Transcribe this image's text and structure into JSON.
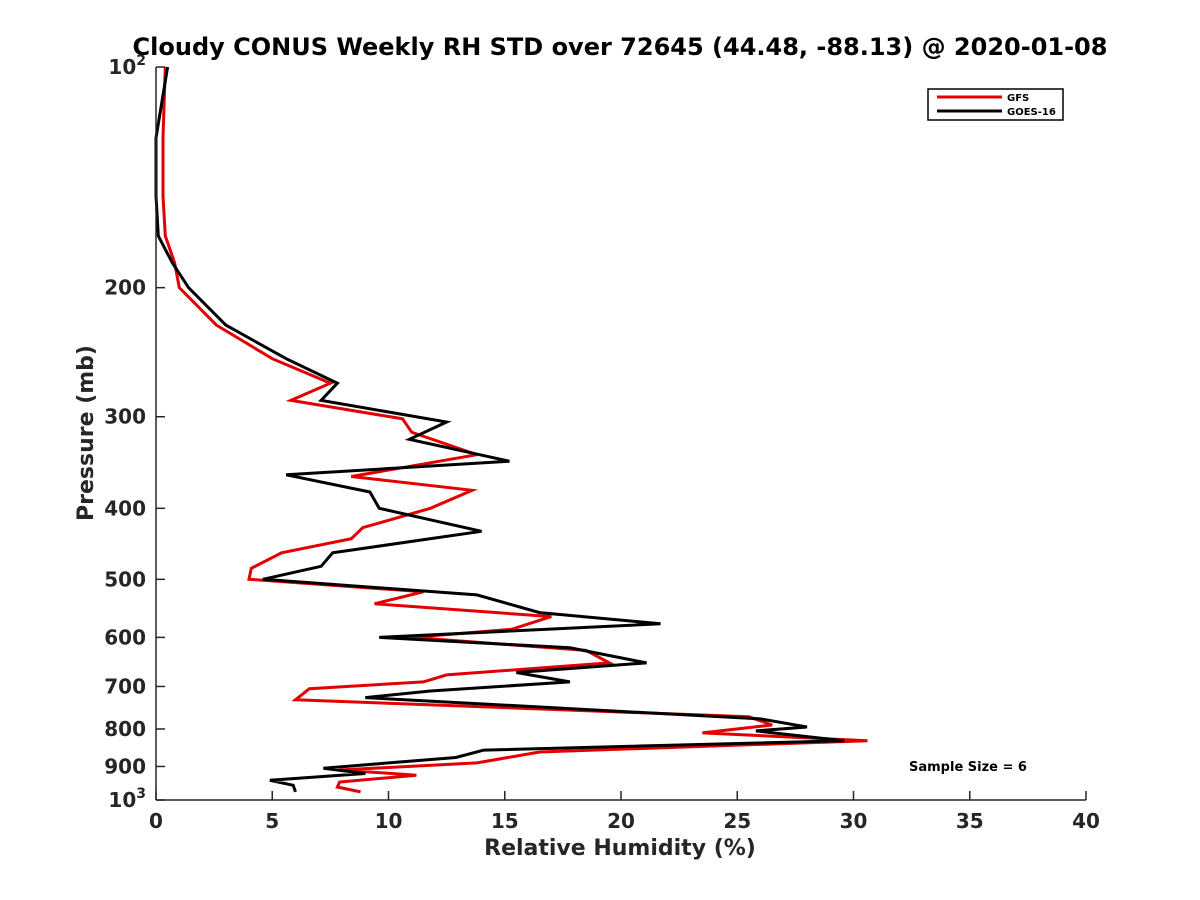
{
  "chart_data": {
    "type": "line",
    "title": "Cloudy CONUS Weekly RH STD over 72645 (44.48, -88.13) @ 2020-01-08",
    "xlabel": "Relative Humidity (%)",
    "ylabel": "Pressure (mb)",
    "xlim": [
      0,
      40
    ],
    "ylim": [
      100,
      1000
    ],
    "y_scale": "log",
    "y_reversed": true,
    "x_ticks": [
      "0",
      "5",
      "10",
      "15",
      "20",
      "25",
      "30",
      "35",
      "40"
    ],
    "y_ticks": [
      {
        "value": 100,
        "base": "10",
        "exp": "2"
      },
      {
        "value": 200,
        "label": "200"
      },
      {
        "value": 300,
        "label": "300"
      },
      {
        "value": 400,
        "label": "400"
      },
      {
        "value": 500,
        "label": "500"
      },
      {
        "value": 600,
        "label": "600"
      },
      {
        "value": 700,
        "label": "700"
      },
      {
        "value": 800,
        "label": "800"
      },
      {
        "value": 900,
        "label": "900"
      },
      {
        "value": 1000,
        "base": "10",
        "exp": "3"
      }
    ],
    "legend_position": "top-right",
    "annotation": "Sample Size = 6",
    "series": [
      {
        "name": "GFS",
        "color": "#e30000",
        "points": [
          [
            0.4,
            100
          ],
          [
            0.3,
            125
          ],
          [
            0.3,
            150
          ],
          [
            0.4,
            170
          ],
          [
            0.8,
            185
          ],
          [
            1.0,
            200
          ],
          [
            2.6,
            225
          ],
          [
            5.0,
            250
          ],
          [
            7.5,
            270
          ],
          [
            5.8,
            285
          ],
          [
            10.6,
            302
          ],
          [
            11.0,
            315
          ],
          [
            13.8,
            338
          ],
          [
            8.4,
            362
          ],
          [
            13.6,
            378
          ],
          [
            11.8,
            400
          ],
          [
            8.9,
            425
          ],
          [
            8.4,
            440
          ],
          [
            5.4,
            460
          ],
          [
            4.1,
            483
          ],
          [
            4.0,
            500
          ],
          [
            11.5,
            520
          ],
          [
            9.4,
            540
          ],
          [
            17.0,
            562
          ],
          [
            15.3,
            585
          ],
          [
            11.0,
            600
          ],
          [
            18.5,
            625
          ],
          [
            19.5,
            650
          ],
          [
            12.5,
            675
          ],
          [
            11.5,
            690
          ],
          [
            6.6,
            705
          ],
          [
            6.0,
            730
          ],
          [
            25.5,
            770
          ],
          [
            26.5,
            790
          ],
          [
            23.5,
            810
          ],
          [
            30.6,
            830
          ],
          [
            16.5,
            860
          ],
          [
            13.8,
            890
          ],
          [
            7.9,
            910
          ],
          [
            11.2,
            925
          ],
          [
            7.9,
            945
          ],
          [
            7.8,
            960
          ],
          [
            8.8,
            975
          ]
        ]
      },
      {
        "name": "GOES-16",
        "color": "#000000",
        "points": [
          [
            0.5,
            100
          ],
          [
            0.0,
            125
          ],
          [
            0.0,
            150
          ],
          [
            0.1,
            170
          ],
          [
            0.7,
            185
          ],
          [
            1.4,
            200
          ],
          [
            3.0,
            225
          ],
          [
            5.6,
            250
          ],
          [
            7.8,
            270
          ],
          [
            7.1,
            285
          ],
          [
            12.5,
            305
          ],
          [
            10.9,
            322
          ],
          [
            15.2,
            345
          ],
          [
            5.6,
            360
          ],
          [
            9.2,
            380
          ],
          [
            9.6,
            400
          ],
          [
            14.0,
            430
          ],
          [
            7.6,
            460
          ],
          [
            7.1,
            480
          ],
          [
            4.6,
            500
          ],
          [
            13.8,
            525
          ],
          [
            16.5,
            555
          ],
          [
            21.7,
            575
          ],
          [
            9.6,
            600
          ],
          [
            17.8,
            620
          ],
          [
            21.1,
            650
          ],
          [
            15.5,
            670
          ],
          [
            17.8,
            690
          ],
          [
            11.8,
            710
          ],
          [
            9.0,
            725
          ],
          [
            26.0,
            775
          ],
          [
            28.0,
            795
          ],
          [
            25.8,
            805
          ],
          [
            29.6,
            830
          ],
          [
            14.1,
            855
          ],
          [
            12.9,
            875
          ],
          [
            7.2,
            905
          ],
          [
            9.0,
            920
          ],
          [
            4.9,
            940
          ],
          [
            5.9,
            955
          ],
          [
            6.0,
            975
          ]
        ]
      }
    ]
  }
}
